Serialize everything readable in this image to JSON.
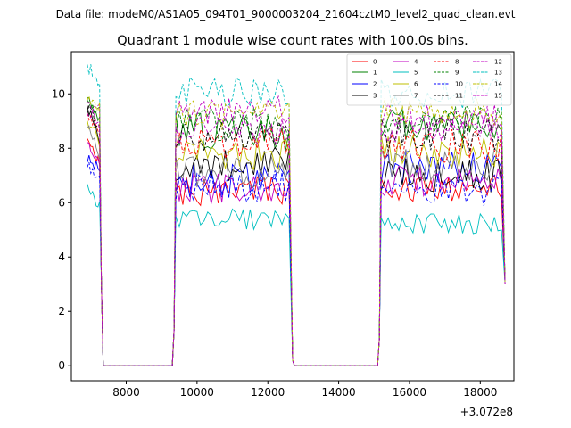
{
  "figure": {
    "suptitle": "Data file: modeM0/AS1A05_094T01_9000003204_21604cztM0_level2_quad_clean.evt"
  },
  "chart_data": {
    "type": "line",
    "title": "Quadrant 1 module wise count rates with 100.0s bins.",
    "xlabel": "",
    "ylabel": "",
    "x_offset_label": "+3.072e8",
    "xlim": [
      6450,
      18950
    ],
    "ylim": [
      -0.55,
      11.55
    ],
    "xticks": [
      8000,
      10000,
      12000,
      14000,
      16000,
      18000
    ],
    "xtick_labels": [
      "8000",
      "10000",
      "12000",
      "14000",
      "16000",
      "18000"
    ],
    "yticks": [
      0,
      2,
      4,
      6,
      8,
      10
    ],
    "ytick_labels": [
      "0",
      "2",
      "4",
      "6",
      "8",
      "10"
    ],
    "grid": false,
    "legend": {
      "placement": "top-right",
      "columns": 4
    },
    "segments": [
      {
        "x_start": 6900,
        "x_end": 7250,
        "step": 50
      },
      {
        "x_start": 9400,
        "x_end": 12600,
        "step": 100
      },
      {
        "x_start": 15200,
        "x_end": 18600,
        "step": 100
      }
    ],
    "gaps": [
      {
        "x": [
          7350,
          9300
        ]
      },
      {
        "x": [
          12750,
          15100
        ]
      }
    ],
    "edges": {
      "drop_to": 3.0,
      "rise_from": 0.5
    },
    "series": [
      {
        "name": "0",
        "color": "#ff0000",
        "dashed": false,
        "level_a": 6.4,
        "level_b": 6.5,
        "start": 8.6,
        "noise": 0.35
      },
      {
        "name": "1",
        "color": "#008000",
        "dashed": false,
        "level_a": 8.6,
        "level_b": 8.8,
        "start": 9.9,
        "noise": 0.45
      },
      {
        "name": "2",
        "color": "#0000ff",
        "dashed": false,
        "level_a": 6.8,
        "level_b": 7.3,
        "start": 7.7,
        "noise": 0.4
      },
      {
        "name": "3",
        "color": "#000000",
        "dashed": false,
        "level_a": 7.4,
        "level_b": 7.0,
        "start": 9.6,
        "noise": 0.4
      },
      {
        "name": "4",
        "color": "#c000c0",
        "dashed": false,
        "level_a": 6.5,
        "level_b": 6.8,
        "start": 8.3,
        "noise": 0.35
      },
      {
        "name": "5",
        "color": "#00bfbf",
        "dashed": false,
        "level_a": 5.4,
        "level_b": 5.2,
        "start": 6.5,
        "noise": 0.25
      },
      {
        "name": "6",
        "color": "#bfbf00",
        "dashed": false,
        "level_a": 7.8,
        "level_b": 7.9,
        "start": 9.0,
        "noise": 0.4
      },
      {
        "name": "7",
        "color": "#808080",
        "dashed": false,
        "level_a": 7.1,
        "level_b": 7.4,
        "start": 8.8,
        "noise": 0.4
      },
      {
        "name": "8",
        "color": "#ff0000",
        "dashed": true,
        "level_a": 8.2,
        "level_b": 8.1,
        "start": 9.3,
        "noise": 0.4
      },
      {
        "name": "9",
        "color": "#008000",
        "dashed": true,
        "level_a": 8.9,
        "level_b": 9.0,
        "start": 9.8,
        "noise": 0.4
      },
      {
        "name": "10",
        "color": "#0000ff",
        "dashed": true,
        "level_a": 6.6,
        "level_b": 6.4,
        "start": 7.4,
        "noise": 0.4
      },
      {
        "name": "11",
        "color": "#000000",
        "dashed": true,
        "level_a": 8.4,
        "level_b": 8.5,
        "start": 9.5,
        "noise": 0.4
      },
      {
        "name": "12",
        "color": "#c000c0",
        "dashed": true,
        "level_a": 9.4,
        "level_b": 9.1,
        "start": 9.7,
        "noise": 0.35
      },
      {
        "name": "13",
        "color": "#00bfbf",
        "dashed": true,
        "level_a": 10.1,
        "level_b": 10.0,
        "start": 11.0,
        "noise": 0.35
      },
      {
        "name": "14",
        "color": "#bfbf00",
        "dashed": true,
        "level_a": 9.2,
        "level_b": 9.3,
        "start": 10.0,
        "noise": 0.35
      },
      {
        "name": "15",
        "color": "#c000c0",
        "dashed": true,
        "level_a": 8.6,
        "level_b": 8.6,
        "start": 9.4,
        "noise": 0.35
      }
    ]
  }
}
